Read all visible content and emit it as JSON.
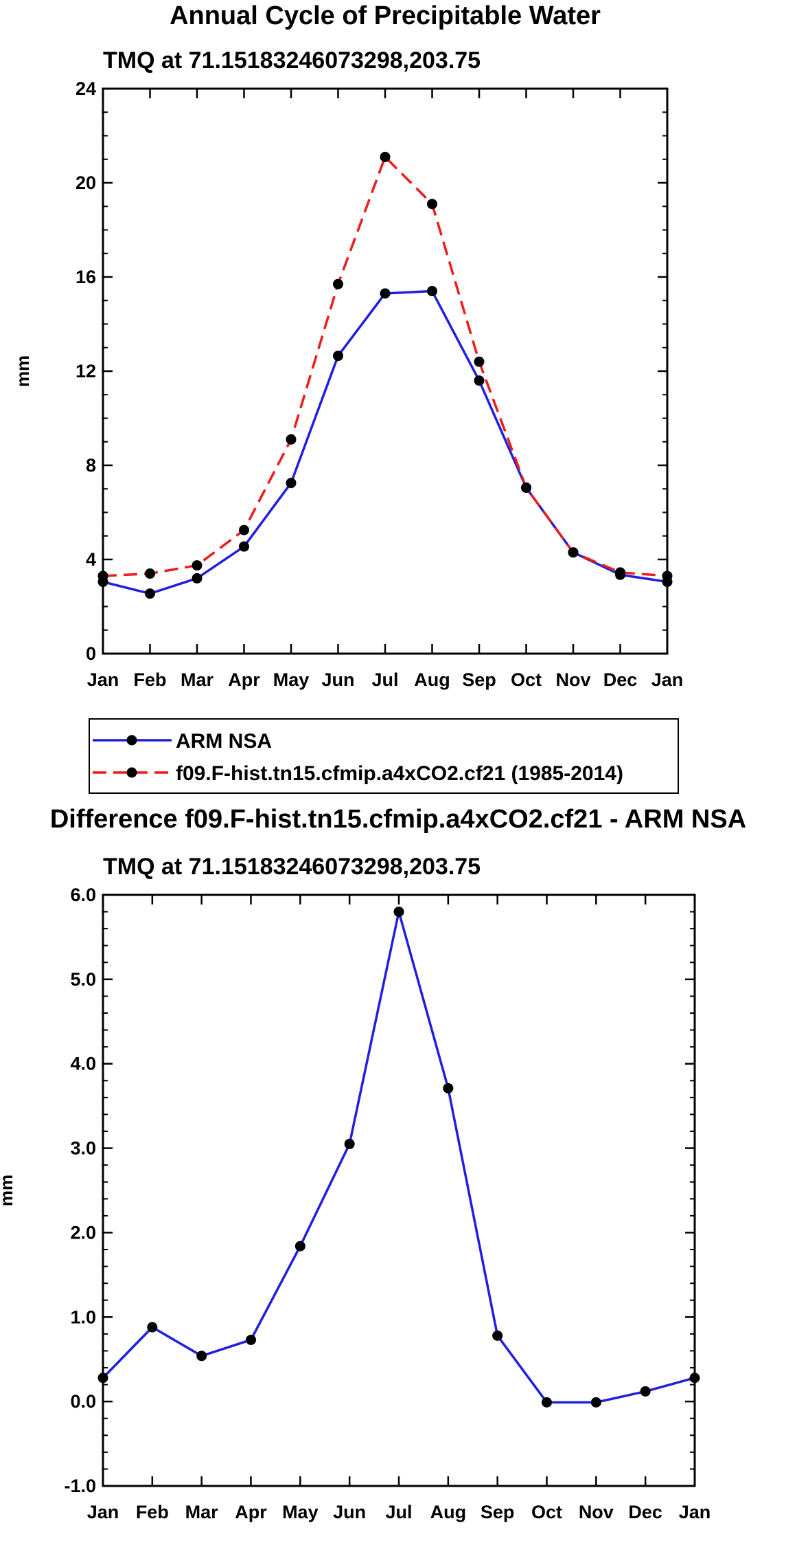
{
  "figure": {
    "title": "Annual Cycle of Precipitable Water",
    "diff_title": "Difference f09.F-hist.tn15.cfmip.a4xCO2.cf21 - ARM NSA"
  },
  "chart_data": [
    {
      "type": "line",
      "subtitle": "TMQ at 71.15183246073298,203.75",
      "xlabel": "",
      "ylabel": "mm",
      "categories": [
        "Jan",
        "Feb",
        "Mar",
        "Apr",
        "May",
        "Jun",
        "Jul",
        "Aug",
        "Sep",
        "Oct",
        "Nov",
        "Dec",
        "Jan"
      ],
      "ylim": [
        0,
        24
      ],
      "yticks": [
        0,
        4,
        8,
        12,
        16,
        20,
        24
      ],
      "ytick_labels": [
        "0",
        "4",
        "8",
        "12",
        "16",
        "20",
        "24"
      ],
      "grid": false,
      "legend_position": "below",
      "series": [
        {
          "name": "ARM NSA",
          "color": "#1f1fe0",
          "dash": "solid",
          "values": [
            3.05,
            2.55,
            3.2,
            4.55,
            7.25,
            12.65,
            15.3,
            15.4,
            11.6,
            7.05,
            4.3,
            3.35,
            3.05
          ]
        },
        {
          "name": "f09.F-hist.tn15.cfmip.a4xCO2.cf21 (1985-2014)",
          "color": "#ee1c1c",
          "dash": "dashed",
          "values": [
            3.3,
            3.4,
            3.75,
            5.25,
            9.1,
            15.7,
            21.1,
            19.1,
            12.4,
            7.05,
            4.3,
            3.45,
            3.3
          ]
        }
      ]
    },
    {
      "type": "line",
      "subtitle": "TMQ at 71.15183246073298,203.75",
      "xlabel": "",
      "ylabel": "mm",
      "categories": [
        "Jan",
        "Feb",
        "Mar",
        "Apr",
        "May",
        "Jun",
        "Jul",
        "Aug",
        "Sep",
        "Oct",
        "Nov",
        "Dec",
        "Jan"
      ],
      "ylim": [
        -1.0,
        6.0
      ],
      "yticks": [
        -1,
        0,
        1,
        2,
        3,
        4,
        5,
        6
      ],
      "ytick_labels": [
        "-1.0",
        "0.0",
        "1.0",
        "2.0",
        "3.0",
        "4.0",
        "5.0",
        "6.0"
      ],
      "grid": false,
      "series": [
        {
          "name": "Difference",
          "color": "#1f1fe0",
          "dash": "solid",
          "values": [
            0.28,
            0.88,
            0.54,
            0.73,
            1.84,
            3.05,
            5.8,
            3.71,
            0.78,
            -0.01,
            -0.01,
            0.12,
            0.28
          ]
        }
      ]
    }
  ]
}
